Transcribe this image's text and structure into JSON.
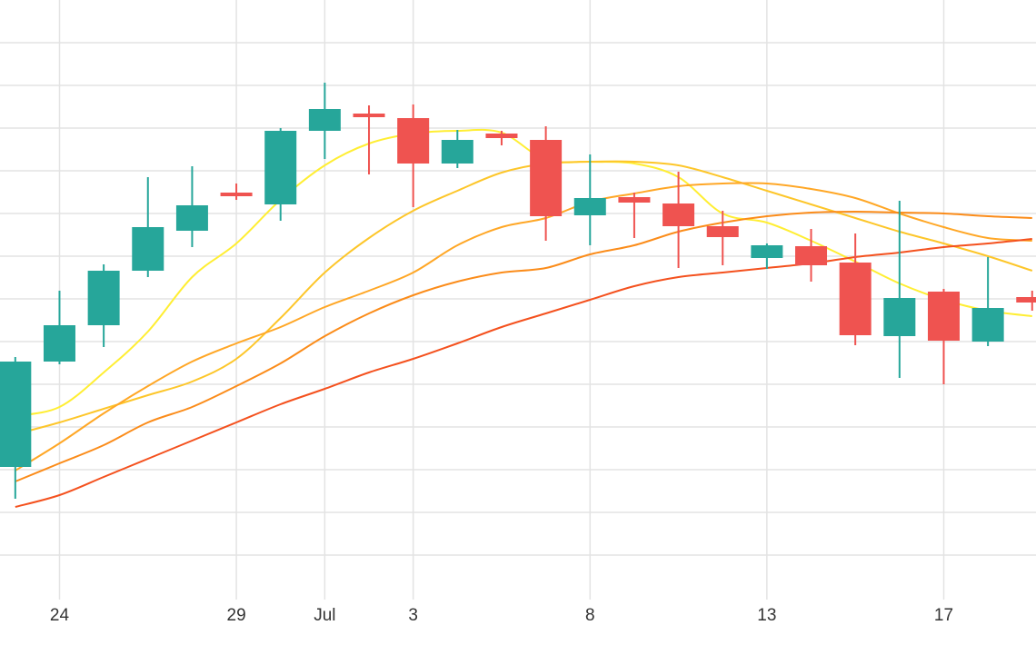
{
  "chart_data": {
    "type": "candlestick",
    "categories": [
      null,
      "24",
      null,
      null,
      null,
      "29",
      null,
      "Jul",
      null,
      "3",
      null,
      null,
      null,
      "8",
      null,
      null,
      null,
      "13",
      null,
      null,
      null,
      "17",
      null,
      null
    ],
    "open": [
      144,
      260,
      300,
      360,
      404,
      446,
      433,
      514,
      533,
      528,
      478,
      511,
      504,
      421,
      441,
      434,
      409,
      374,
      387,
      369,
      288,
      337,
      282,
      331
    ],
    "high": [
      265,
      338,
      367,
      463,
      475,
      456,
      517,
      567,
      542,
      543,
      515,
      514,
      519,
      488,
      446,
      469,
      426,
      390,
      406,
      401,
      437,
      340,
      375,
      338
    ],
    "low": [
      109,
      257,
      276,
      353,
      386,
      438,
      415,
      483,
      466,
      430,
      473,
      498,
      393,
      388,
      396,
      363,
      366,
      362,
      348,
      278,
      242,
      235,
      277,
      316
    ],
    "close": [
      260,
      300,
      360,
      408,
      432,
      442,
      514,
      538,
      529,
      478,
      504,
      506,
      420,
      440,
      435,
      409,
      397,
      388,
      366,
      289,
      330,
      283,
      319,
      325
    ],
    "up_color": "#26a69a",
    "down_color": "#ef5350",
    "lines": [
      {
        "color": "#ffee33",
        "values": [
          200,
          210,
          248,
          293,
          353,
          390,
          438,
          476,
          500,
          511,
          514,
          512,
          482,
          480,
          478,
          463,
          423,
          413,
          393,
          370,
          346,
          328,
          316,
          310
        ]
      },
      {
        "color": "#fdc62a",
        "values": [
          180,
          193,
          208,
          223,
          238,
          263,
          308,
          358,
          396,
          426,
          448,
          468,
          478,
          480,
          480,
          476,
          463,
          448,
          433,
          418,
          403,
          390,
          376,
          360
        ]
      },
      {
        "color": "#ffa726",
        "values": [
          140,
          170,
          203,
          233,
          260,
          280,
          298,
          320,
          338,
          358,
          388,
          408,
          418,
          436,
          445,
          453,
          456,
          456,
          450,
          440,
          423,
          408,
          396,
          393
        ]
      },
      {
        "color": "#fb8c1a",
        "values": [
          128,
          148,
          168,
          193,
          210,
          233,
          258,
          288,
          313,
          333,
          348,
          358,
          363,
          378,
          388,
          403,
          413,
          420,
          424,
          425,
          424,
          423,
          420,
          418
        ]
      },
      {
        "color": "#f4511e",
        "values": [
          100,
          113,
          133,
          153,
          173,
          193,
          213,
          230,
          248,
          263,
          280,
          298,
          313,
          328,
          343,
          353,
          358,
          363,
          368,
          375,
          380,
          386,
          390,
          395
        ]
      }
    ],
    "ylim": [
      0,
      658
    ],
    "yticks": [
      47,
      94,
      141,
      188,
      235,
      282,
      329,
      376,
      423,
      470,
      517,
      564,
      611
    ],
    "ytick_labels": false,
    "grid": true
  }
}
